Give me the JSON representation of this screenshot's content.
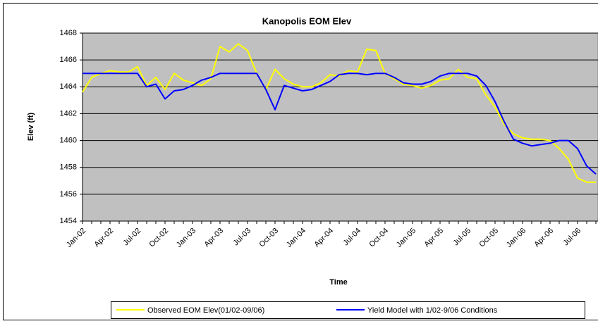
{
  "chart_data": {
    "type": "line",
    "title": "Kanopolis EOM Elev",
    "x_label": "Time",
    "y_label": "Elev (ft)",
    "categories": [
      "Jan-02",
      null,
      null,
      "Apr-02",
      null,
      null,
      "Jul-02",
      null,
      null,
      "Oct-02",
      null,
      null,
      "Jan-03",
      null,
      null,
      "Apr-03",
      null,
      null,
      "Jul-03",
      null,
      null,
      "Oct-03",
      null,
      null,
      "Jan-04",
      null,
      null,
      "Apr-04",
      null,
      null,
      "Jul-04",
      null,
      null,
      "Oct-04",
      null,
      null,
      "Jan-05",
      null,
      null,
      "Apr-05",
      null,
      null,
      "Jul-05",
      null,
      null,
      "Oct-05",
      null,
      null,
      "Jan-06",
      null,
      null,
      "Apr-06",
      null,
      null,
      "Jul-06",
      null,
      null
    ],
    "series": [
      {
        "name": "Observed EOM Elev(01/02-09/06)",
        "color": "#ffff00",
        "values": [
          1463.6,
          1464.7,
          1465.0,
          1465.2,
          1465.1,
          1465.1,
          1465.5,
          1464.1,
          1464.7,
          1463.8,
          1465.0,
          1464.5,
          1464.3,
          1464.1,
          1464.6,
          1467.0,
          1466.6,
          1467.2,
          1466.7,
          1465.0,
          1463.8,
          1465.3,
          1464.6,
          1464.2,
          1464.0,
          1464.0,
          1464.3,
          1464.9,
          1464.8,
          1465.2,
          1465.1,
          1466.8,
          1466.7,
          1465.0,
          1464.6,
          1464.2,
          1464.1,
          1463.9,
          1464.1,
          1464.5,
          1464.6,
          1465.3,
          1464.7,
          1464.6,
          1463.4,
          1462.5,
          1461.2,
          1460.5,
          1460.2,
          1460.1,
          1460.1,
          1460.0,
          1459.4,
          1458.6,
          1457.2,
          1456.9,
          1456.9
        ]
      },
      {
        "name": "Yield Model with 1/02-9/06 Conditions",
        "color": "#0000ff",
        "values": [
          1465.0,
          1465.0,
          1465.0,
          1465.0,
          1465.0,
          1465.0,
          1465.0,
          1464.0,
          1464.2,
          1463.1,
          1463.7,
          1463.8,
          1464.1,
          1464.5,
          1464.7,
          1465.0,
          1465.0,
          1465.0,
          1465.0,
          1465.0,
          1463.8,
          1462.3,
          1464.1,
          1463.9,
          1463.7,
          1463.8,
          1464.1,
          1464.4,
          1464.9,
          1465.0,
          1465.0,
          1464.9,
          1465.0,
          1465.0,
          1464.7,
          1464.3,
          1464.2,
          1464.2,
          1464.4,
          1464.8,
          1465.0,
          1465.0,
          1465.0,
          1464.8,
          1464.1,
          1462.9,
          1461.4,
          1460.1,
          1459.8,
          1459.6,
          1459.7,
          1459.8,
          1460.0,
          1460.0,
          1459.4,
          1458.1,
          1457.5
        ]
      }
    ],
    "ylim": [
      1454,
      1468
    ],
    "yticks": [
      1454,
      1456,
      1458,
      1460,
      1462,
      1464,
      1466,
      1468
    ],
    "grid": true,
    "plot_background": "#c0c0c0",
    "legend": "bottom"
  }
}
